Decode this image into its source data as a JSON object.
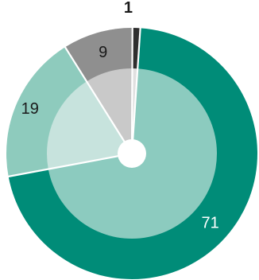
{
  "chart_data": {
    "type": "pie",
    "categories": [
      "",
      "",
      "",
      ""
    ],
    "values": [
      71,
      19,
      9,
      1
    ],
    "labels": [
      "71",
      "19",
      "9",
      "1"
    ],
    "colors": {
      "outer": [
        "#008c78",
        "#8ecbbd",
        "#8f8f8f",
        "#2e2e2e"
      ],
      "inner": [
        "#8ccbbf",
        "#c7e3dd",
        "#c9c9c9",
        "#e0e0e0"
      ],
      "separator": "#ffffff",
      "label_light": "#ffffff",
      "label_dark": "#1a1a1a"
    },
    "style": "donut-with-inner-ring"
  }
}
